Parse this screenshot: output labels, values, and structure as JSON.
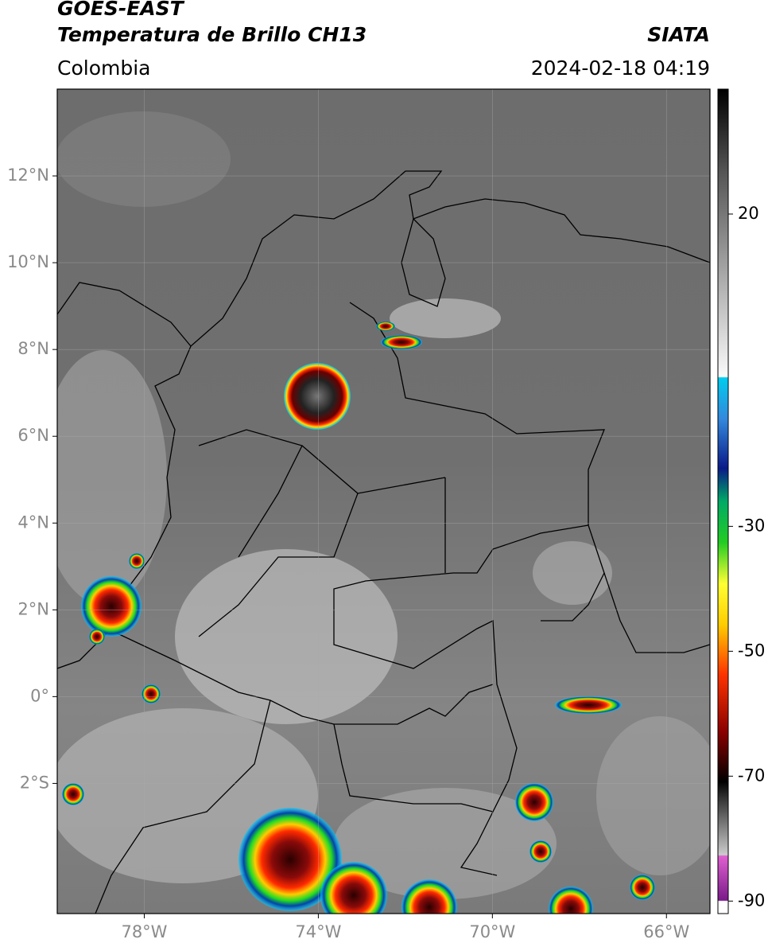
{
  "header": {
    "satellite": "GOES-EAST",
    "product": "Temperatura de Brillo CH13",
    "source": "SIATA",
    "region": "Colombia",
    "datetime": "2024-02-18 04:19"
  },
  "map": {
    "xlim": [
      -80,
      -65
    ],
    "ylim": [
      -5,
      14
    ],
    "xticks": [
      {
        "value": -78,
        "label": "78°W"
      },
      {
        "value": -74,
        "label": "74°W"
      },
      {
        "value": -70,
        "label": "70°W"
      },
      {
        "value": -66,
        "label": "66°W"
      }
    ],
    "yticks": [
      {
        "value": 12,
        "label": "12°N"
      },
      {
        "value": 10,
        "label": "10°N"
      },
      {
        "value": 8,
        "label": "8°N"
      },
      {
        "value": 6,
        "label": "6°N"
      },
      {
        "value": 4,
        "label": "4°N"
      },
      {
        "value": 2,
        "label": "2°N"
      },
      {
        "value": 0,
        "label": "0°"
      },
      {
        "value": -2,
        "label": "2°S"
      }
    ],
    "grid": true
  },
  "colorbar": {
    "lim": [
      -92,
      40
    ],
    "ticks": [
      20,
      -30,
      -50,
      -70,
      -90
    ]
  }
}
